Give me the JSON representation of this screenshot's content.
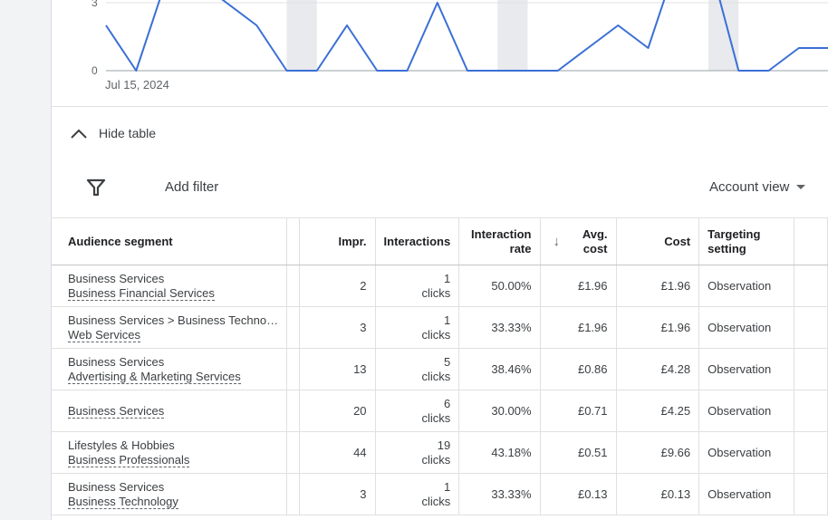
{
  "chart_data": {
    "type": "line",
    "y_ticks": [
      "3",
      "0"
    ],
    "x_label_start": "Jul 15, 2024",
    "color": "#3b6fd6",
    "points": [
      [
        0,
        2
      ],
      [
        1,
        0
      ],
      [
        2,
        4
      ],
      [
        3,
        4
      ],
      [
        4,
        3
      ],
      [
        5,
        2
      ],
      [
        6,
        0
      ],
      [
        7,
        0
      ],
      [
        8,
        2
      ],
      [
        9,
        0
      ],
      [
        10,
        0
      ],
      [
        11,
        3
      ],
      [
        12,
        0
      ],
      [
        13,
        0
      ],
      [
        14,
        0
      ],
      [
        15,
        0
      ],
      [
        16,
        1
      ],
      [
        17,
        2
      ],
      [
        18,
        1
      ],
      [
        19,
        5
      ],
      [
        20,
        5
      ],
      [
        21,
        0
      ],
      [
        22,
        0
      ],
      [
        23,
        1
      ],
      [
        24,
        1
      ]
    ]
  },
  "toggle": {
    "label": "Hide table"
  },
  "toolbar": {
    "add_filter": "Add filter",
    "account_view": "Account view"
  },
  "table": {
    "headers": {
      "segment": "Audience segment",
      "impr": "Impr.",
      "interactions": "Interactions",
      "interaction_rate_1": "Interaction",
      "interaction_rate_2": "rate",
      "avg_cost_1": "Avg.",
      "avg_cost_2": "cost",
      "cost": "Cost",
      "targeting_1": "Targeting",
      "targeting_2": "setting"
    },
    "rows": [
      {
        "parent": "Business Services",
        "name": "Business Financial Services",
        "impr": "2",
        "int_n": "1",
        "int_u": "clicks",
        "rate": "50.00%",
        "avg": "£1.96",
        "cost": "£1.96",
        "setting": "Observation"
      },
      {
        "parent": "Business Services > Business Techno…",
        "name": "Web Services",
        "impr": "3",
        "int_n": "1",
        "int_u": "clicks",
        "rate": "33.33%",
        "avg": "£1.96",
        "cost": "£1.96",
        "setting": "Observation"
      },
      {
        "parent": "Business Services",
        "name": "Advertising & Marketing Services",
        "impr": "13",
        "int_n": "5",
        "int_u": "clicks",
        "rate": "38.46%",
        "avg": "£0.86",
        "cost": "£4.28",
        "setting": "Observation"
      },
      {
        "parent": "",
        "name": "Business Services",
        "impr": "20",
        "int_n": "6",
        "int_u": "clicks",
        "rate": "30.00%",
        "avg": "£0.71",
        "cost": "£4.25",
        "setting": "Observation"
      },
      {
        "parent": "Lifestyles & Hobbies",
        "name": "Business Professionals",
        "impr": "44",
        "int_n": "19",
        "int_u": "clicks",
        "rate": "43.18%",
        "avg": "£0.51",
        "cost": "£9.66",
        "setting": "Observation"
      },
      {
        "parent": "Business Services",
        "name": "Business Technology",
        "impr": "3",
        "int_n": "1",
        "int_u": "clicks",
        "rate": "33.33%",
        "avg": "£0.13",
        "cost": "£0.13",
        "setting": "Observation"
      }
    ]
  }
}
